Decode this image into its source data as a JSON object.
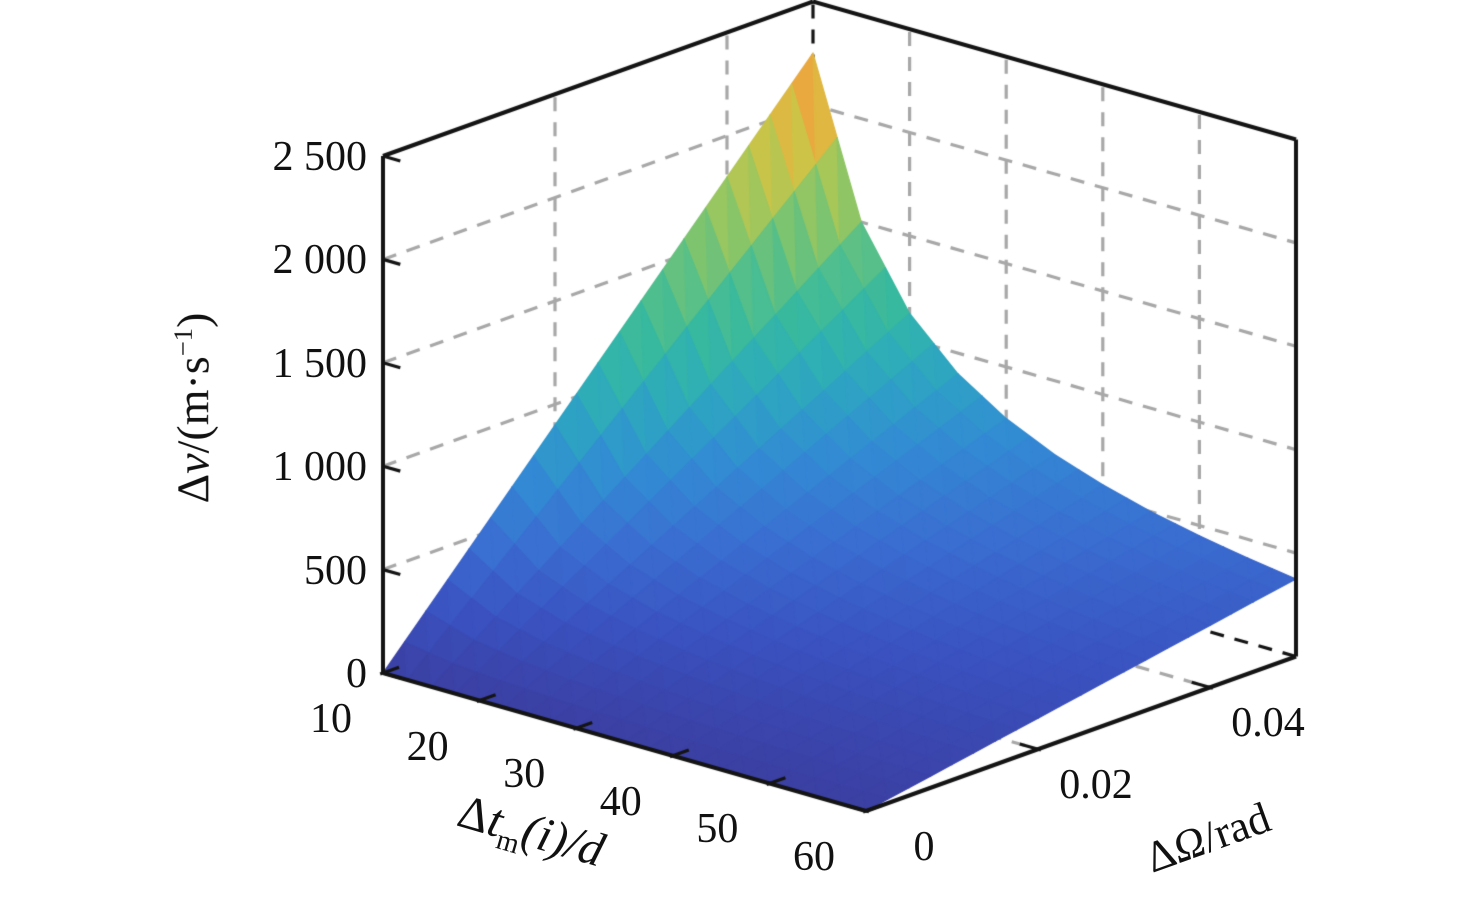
{
  "figure": {
    "background": "#ffffff",
    "axis_color": "#141414",
    "grid_color": "#a8a8a8",
    "grid_style": "dashed",
    "hidden_edge_color": "#141414"
  },
  "labels": {
    "z": {
      "full": "Δv/(m·s⁻¹)",
      "p1": "Δ",
      "p2": "v",
      "p3": "/(m·s",
      "p4": "−1",
      "p5": ")"
    },
    "x": {
      "full": "Δt_m(i)/d",
      "p1": "Δ",
      "p2": "t",
      "p3": "m",
      "p4": "(i)/d"
    },
    "y": {
      "full": "ΔΩ/rad",
      "p1": "Δ",
      "p2": "Ω",
      "p3": "/rad"
    }
  },
  "axes": {
    "x": {
      "ticks": [
        "10",
        "20",
        "30",
        "40",
        "50",
        "60"
      ],
      "tick_values": [
        10,
        20,
        30,
        40,
        50,
        60
      ],
      "range": [
        10,
        60
      ]
    },
    "y": {
      "ticks": [
        "0",
        "0.02",
        "0.04"
      ],
      "tick_values": [
        0,
        0.02,
        0.04
      ],
      "range": [
        0,
        0.05
      ]
    },
    "z": {
      "ticks": [
        "0",
        "500",
        "1 000",
        "1 500",
        "2 000",
        "2 500"
      ],
      "tick_values": [
        0,
        500,
        1000,
        1500,
        2000,
        2500
      ],
      "range": [
        0,
        2500
      ]
    }
  },
  "chart_data": {
    "type": "surface",
    "title": "",
    "xlabel": "Δt_m(i)/d",
    "ylabel": "ΔΩ/rad",
    "zlabel": "Δv/(m·s⁻¹)",
    "x": [
      10,
      15,
      20,
      25,
      30,
      35,
      40,
      45,
      50,
      55,
      60
    ],
    "y": [
      0,
      0.005,
      0.01,
      0.015,
      0.02,
      0.025,
      0.03,
      0.035,
      0.04,
      0.045,
      0.05
    ],
    "z": [
      [
        0,
        225,
        450,
        675,
        900,
        1125,
        1350,
        1575,
        1800,
        2025,
        2250
      ],
      [
        0,
        150,
        300,
        450,
        600,
        750,
        900,
        1050,
        1200,
        1350,
        1500
      ],
      [
        0,
        113,
        225,
        338,
        450,
        563,
        675,
        788,
        900,
        1013,
        1125
      ],
      [
        0,
        90,
        180,
        270,
        360,
        450,
        540,
        630,
        720,
        810,
        900
      ],
      [
        0,
        75,
        150,
        225,
        300,
        375,
        450,
        525,
        600,
        675,
        750
      ],
      [
        0,
        64,
        129,
        193,
        257,
        321,
        386,
        450,
        514,
        579,
        643
      ],
      [
        0,
        56,
        113,
        169,
        225,
        281,
        338,
        394,
        450,
        506,
        563
      ],
      [
        0,
        50,
        100,
        150,
        200,
        250,
        300,
        350,
        400,
        450,
        500
      ],
      [
        0,
        45,
        90,
        135,
        180,
        225,
        270,
        315,
        360,
        405,
        450
      ],
      [
        0,
        41,
        82,
        123,
        164,
        205,
        245,
        286,
        327,
        368,
        409
      ],
      [
        0,
        38,
        75,
        113,
        150,
        188,
        225,
        263,
        300,
        338,
        375
      ]
    ],
    "zlim": [
      0,
      2500
    ],
    "grid": true,
    "legend": false,
    "colormap": [
      [
        0.0,
        "#3b3fa2"
      ],
      [
        0.1,
        "#3a52c0"
      ],
      [
        0.2,
        "#3a6ed1"
      ],
      [
        0.3,
        "#3389d4"
      ],
      [
        0.38,
        "#2e9fc7"
      ],
      [
        0.45,
        "#2fafb5"
      ],
      [
        0.52,
        "#37b99f"
      ],
      [
        0.6,
        "#55bf8a"
      ],
      [
        0.68,
        "#7fc46e"
      ],
      [
        0.76,
        "#abc757"
      ],
      [
        0.83,
        "#cdc447"
      ],
      [
        0.89,
        "#e5b23f"
      ],
      [
        0.94,
        "#eda03e"
      ],
      [
        1.0,
        "#e7d33b"
      ]
    ]
  }
}
